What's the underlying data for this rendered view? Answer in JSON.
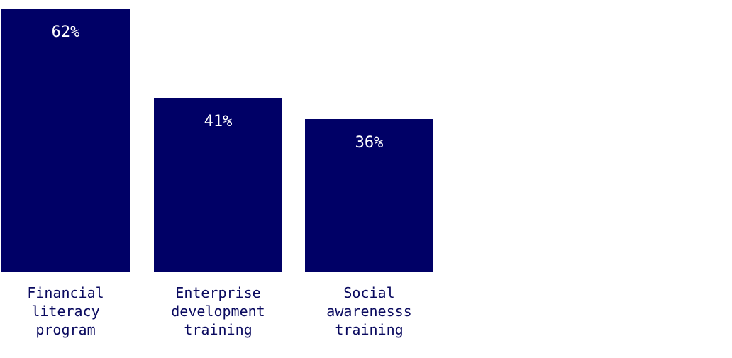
{
  "chart_data": {
    "type": "bar",
    "categories": [
      [
        "Financial",
        "literacy",
        "program"
      ],
      [
        "Enterprise",
        "development",
        "training"
      ],
      [
        "Social",
        "awarenesss",
        "training"
      ]
    ],
    "values": [
      62,
      41,
      36
    ],
    "value_labels": [
      "62%",
      "41%",
      "36%"
    ],
    "unit": "%",
    "ylim": [
      0,
      62
    ],
    "title": "",
    "xlabel": "",
    "ylabel": "",
    "grid": false,
    "bar_color": "#000066",
    "label_color": "#0a0a5f"
  }
}
